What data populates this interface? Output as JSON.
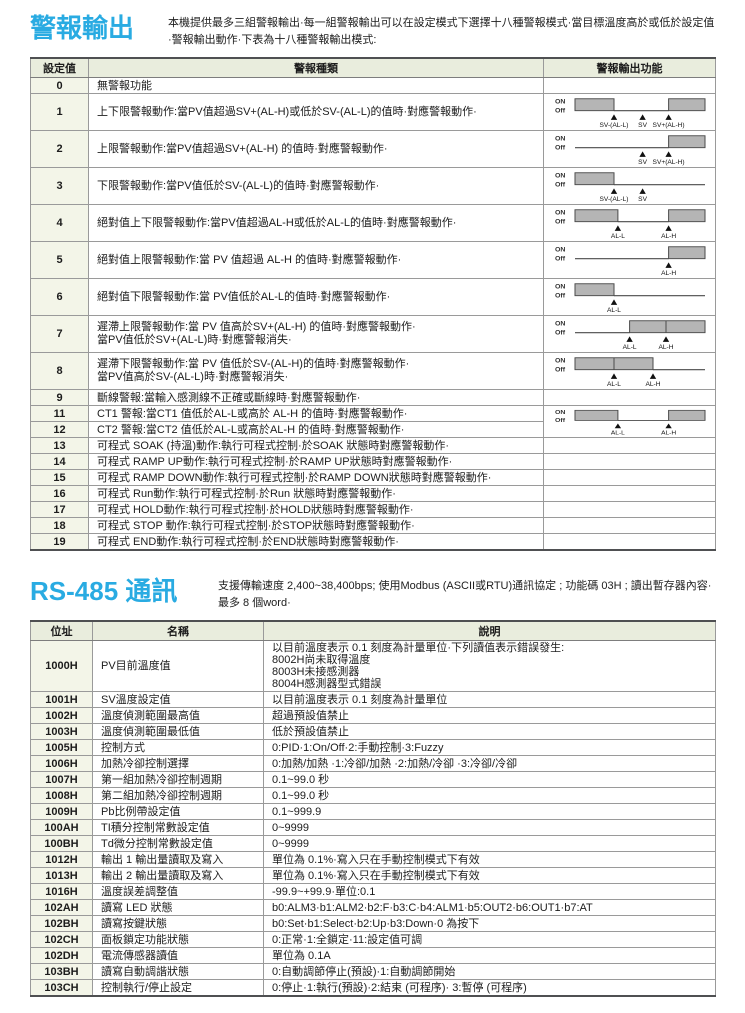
{
  "colors": {
    "accent_blue": "#29abe2",
    "table_header_bg": "#e9eddd",
    "first_col_bg": "#f3f5e8",
    "diagram_fill": "#b5b5b5"
  },
  "alarm": {
    "title": "警報輸出",
    "intro": "本機提供最多三組警報輸出·每一組警報輸出可以在設定模式下選擇十八種警報模式·當目標溫度高於或低於設定值·警報輸出動作·下表為十八種警報輸出模式:",
    "table": {
      "headers": [
        "設定值",
        "警報種類",
        "警報輸出功能"
      ],
      "rows": [
        {
          "value": "0",
          "desc": "無警報功能"
        },
        {
          "value": "1",
          "tall": true,
          "desc": "上下限警報動作:當PV值超過SV+(AL-H)或低於SV-(AL-L)的值時·對應警報動作·",
          "diagram": {
            "seg": [
              [
                0,
                0.3,
                1
              ],
              [
                0.3,
                0.72,
                0
              ],
              [
                0.72,
                1,
                1
              ]
            ],
            "mk": [
              [
                0.3,
                "SV-(AL-L)"
              ],
              [
                0.52,
                "SV"
              ],
              [
                0.72,
                "SV+(AL-H)"
              ]
            ]
          }
        },
        {
          "value": "2",
          "tall": true,
          "desc": "上限警報動作:當PV值超過SV+(AL-H) 的值時·對應警報動作·",
          "diagram": {
            "seg": [
              [
                0,
                0.72,
                0
              ],
              [
                0.72,
                1,
                1
              ]
            ],
            "mk": [
              [
                0.52,
                "SV"
              ],
              [
                0.72,
                "SV+(AL-H)"
              ]
            ]
          }
        },
        {
          "value": "3",
          "tall": true,
          "desc": "下限警報動作:當PV值低於SV-(AL-L)的值時·對應警報動作·",
          "diagram": {
            "seg": [
              [
                0,
                0.3,
                1
              ],
              [
                0.3,
                1,
                0
              ]
            ],
            "mk": [
              [
                0.3,
                "SV-(AL-L)"
              ],
              [
                0.52,
                "SV"
              ]
            ]
          }
        },
        {
          "value": "4",
          "tall": true,
          "desc": "絕對值上下限警報動作:當PV值超過AL-H或低於AL-L的值時·對應警報動作·",
          "diagram": {
            "seg": [
              [
                0,
                0.33,
                1
              ],
              [
                0.33,
                0.72,
                0
              ],
              [
                0.72,
                1,
                1
              ]
            ],
            "mk": [
              [
                0.33,
                "AL-L"
              ],
              [
                0.72,
                "AL-H"
              ]
            ]
          }
        },
        {
          "value": "5",
          "tall": true,
          "desc": "絕對值上限警報動作:當 PV 值超過 AL-H 的值時·對應警報動作·",
          "diagram": {
            "seg": [
              [
                0,
                0.72,
                0
              ],
              [
                0.72,
                1,
                1
              ]
            ],
            "mk": [
              [
                0.72,
                "AL-H"
              ]
            ]
          }
        },
        {
          "value": "6",
          "tall": true,
          "desc": "絕對值下限警報動作:當 PV值低於AL-L的值時·對應警報動作·",
          "diagram": {
            "seg": [
              [
                0,
                0.3,
                1
              ],
              [
                0.3,
                1,
                0
              ]
            ],
            "mk": [
              [
                0.3,
                "AL-L"
              ]
            ]
          }
        },
        {
          "value": "7",
          "tall": true,
          "desc": "遲滯上限警報動作:當 PV 值高於SV+(AL-H) 的值時·對應警報動作·\n當PV值低於SV+(AL-L)時·對應警報消失·",
          "diagram": {
            "seg": [
              [
                0,
                0.42,
                0
              ],
              [
                0.42,
                1,
                1
              ]
            ],
            "div": [
              0.7
            ],
            "mk": [
              [
                0.42,
                "AL-L"
              ],
              [
                0.7,
                "AL-H"
              ]
            ]
          }
        },
        {
          "value": "8",
          "tall": true,
          "desc": "遲滯下限警報動作:當 PV 值低於SV-(AL-H)的值時·對應警報動作·\n當PV值高於SV-(AL-L)時·對應警報消失·",
          "diagram": {
            "seg": [
              [
                0,
                0.6,
                1
              ],
              [
                0.6,
                1,
                0
              ]
            ],
            "div": [
              0.3
            ],
            "mk": [
              [
                0.3,
                "AL-L"
              ],
              [
                0.6,
                "AL-H"
              ]
            ]
          }
        },
        {
          "value": "9",
          "desc": "斷線警報:當輸入感測線不正確或斷線時·對應警報動作·"
        },
        {
          "value": "11",
          "desc": "CT1 警報:當CT1 值低於AL-L或高於 AL-H 的值時·對應警報動作·",
          "diagram": {
            "span": 2,
            "seg": [
              [
                0,
                0.33,
                1
              ],
              [
                0.33,
                0.72,
                0
              ],
              [
                0.72,
                1,
                1
              ]
            ],
            "mk": [
              [
                0.33,
                "AL-L"
              ],
              [
                0.72,
                "AL-H"
              ]
            ]
          }
        },
        {
          "value": "12",
          "desc": "CT2 警報:當CT2 值低於AL-L或高於AL-H 的值時·對應警報動作·",
          "diagram": "skip"
        },
        {
          "value": "13",
          "desc": "可程式 SOAK (持溫)動作:執行可程式控制·於SOAK 狀態時對應警報動作·"
        },
        {
          "value": "14",
          "desc": "可程式 RAMP UP動作:執行可程式控制·於RAMP UP狀態時對應警報動作·"
        },
        {
          "value": "15",
          "desc": "可程式 RAMP DOWN動作:執行可程式控制·於RAMP DOWN狀態時對應警報動作·"
        },
        {
          "value": "16",
          "desc": "可程式 Run動作:執行可程式控制·於Run 狀態時對應警報動作·"
        },
        {
          "value": "17",
          "desc": "可程式 HOLD動作:執行可程式控制·於HOLD狀態時對應警報動作·"
        },
        {
          "value": "18",
          "desc": "可程式 STOP 動作:執行可程式控制·於STOP狀態時對應警報動作·"
        },
        {
          "value": "19",
          "desc": "可程式 END動作:執行可程式控制·於END狀態時對應警報動作·"
        }
      ]
    }
  },
  "rs485": {
    "title": "RS-485 通訊",
    "intro": "支援傳輸速度 2,400~38,400bps; 使用Modbus (ASCII或RTU)通訊協定 ; 功能碼 03H ; 讀出暫存器內容·最多 8 個word·",
    "table": {
      "headers": [
        "位址",
        "名稱",
        "說明"
      ],
      "rows": [
        {
          "addr": "1000H",
          "name": "PV目前溫度值",
          "desc": "以目前溫度表示 0.1 刻度為計量單位·下列讀值表示錯誤發生:\n8002H尚未取得溫度\n8003H未接感測器\n8004H感測器型式錯誤"
        },
        {
          "addr": "1001H",
          "name": "SV溫度設定值",
          "desc": "以目前溫度表示 0.1 刻度為計量單位"
        },
        {
          "addr": "1002H",
          "name": "溫度偵測範圍最高值",
          "desc": "超過預設值禁止"
        },
        {
          "addr": "1003H",
          "name": "溫度偵測範圍最低值",
          "desc": "低於預設值禁止"
        },
        {
          "addr": "1005H",
          "name": "控制方式",
          "desc": "0:PID·1:On/Off·2:手動控制·3:Fuzzy"
        },
        {
          "addr": "1006H",
          "name": "加熱冷卻控制選擇",
          "desc": "0:加熱/加熱 ·1:冷卻/加熱 ·2:加熱/冷卻 ·3:冷卻/冷卻"
        },
        {
          "addr": "1007H",
          "name": "第一組加熱冷卻控制週期",
          "desc": "0.1~99.0 秒"
        },
        {
          "addr": "1008H",
          "name": "第二組加熱冷卻控制週期",
          "desc": "0.1~99.0 秒"
        },
        {
          "addr": "1009H",
          "name": "Pb比例帶設定值",
          "desc": "0.1~999.9"
        },
        {
          "addr": "100AH",
          "name": "TI積分控制常數設定值",
          "desc": "0~9999"
        },
        {
          "addr": "100BH",
          "name": "Td微分控制常數設定值",
          "desc": "0~9999"
        },
        {
          "addr": "1012H",
          "name": "輸出 1 輸出量讀取及寫入",
          "desc": "單位為 0.1%·寫入只在手動控制模式下有效"
        },
        {
          "addr": "1013H",
          "name": "輸出 2 輸出量讀取及寫入",
          "desc": "單位為 0.1%·寫入只在手動控制模式下有效"
        },
        {
          "addr": "1016H",
          "name": "溫度誤差調整值",
          "desc": "-99.9~+99.9·單位:0.1"
        },
        {
          "addr": "102AH",
          "name": "讀寫 LED 狀態",
          "desc": "b0:ALM3·b1:ALM2·b2:F·b3:C·b4:ALM1·b5:OUT2·b6:OUT1·b7:AT"
        },
        {
          "addr": "102BH",
          "name": "讀寫按鍵狀態",
          "desc": "b0:Set·b1:Select·b2:Up·b3:Down·0 為按下"
        },
        {
          "addr": "102CH",
          "name": "面板鎖定功能狀態",
          "desc": "0:正常·1:全鎖定·11:設定值可調"
        },
        {
          "addr": "102DH",
          "name": "電流傳感器讀值",
          "desc": "單位為 0.1A"
        },
        {
          "addr": "103BH",
          "name": "讀寫自動調諧狀態",
          "desc": "0:自動調節停止(預設)·1:自動調節開始"
        },
        {
          "addr": "103CH",
          "name": "控制執行/停止設定",
          "desc": "0:停止·1:執行(預設)·2:結束 (可程序)· 3:暫停 (可程序)"
        }
      ]
    }
  }
}
